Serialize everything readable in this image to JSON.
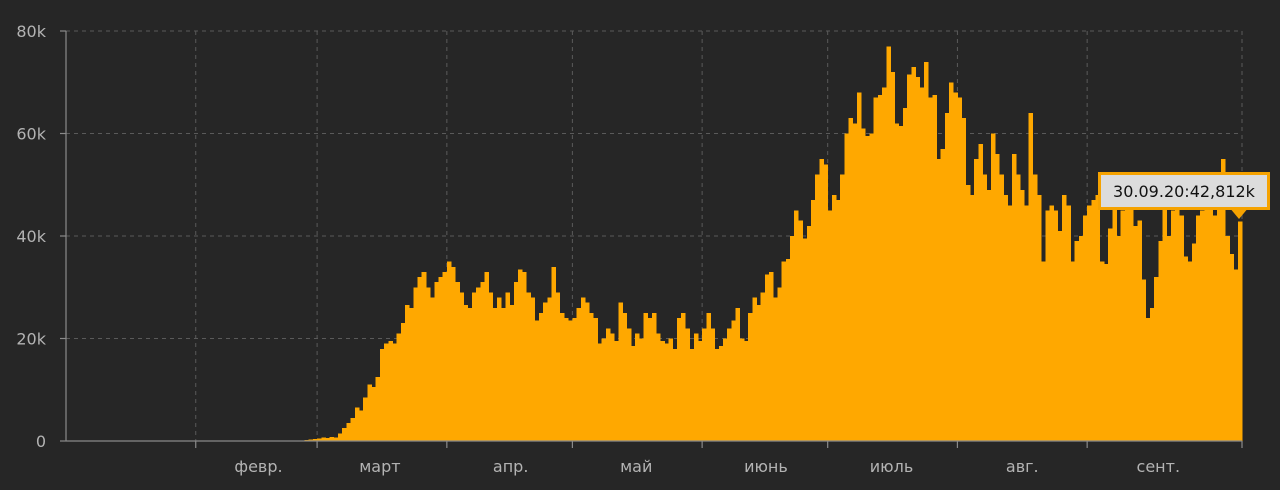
{
  "chart_data": {
    "type": "bar",
    "title": "",
    "xlabel": "",
    "ylabel": "",
    "ylim": [
      0,
      80000
    ],
    "y_ticks": [
      {
        "value": 0,
        "label": "0"
      },
      {
        "value": 20000,
        "label": "20k"
      },
      {
        "value": 40000,
        "label": "40k"
      },
      {
        "value": 60000,
        "label": "60k"
      },
      {
        "value": 80000,
        "label": "80k"
      }
    ],
    "month_labels": [
      {
        "day_index": 31,
        "label": "февр."
      },
      {
        "day_index": 60,
        "label": "март"
      },
      {
        "day_index": 91,
        "label": "апр."
      },
      {
        "day_index": 121,
        "label": "май"
      },
      {
        "day_index": 152,
        "label": "июнь"
      },
      {
        "day_index": 182,
        "label": "июль"
      },
      {
        "day_index": 213,
        "label": "авг."
      },
      {
        "day_index": 244,
        "label": "сент."
      }
    ],
    "x_range": [
      "2020-01-22",
      "2020-09-30"
    ],
    "values": [
      0,
      0,
      0,
      0,
      0,
      0,
      0,
      0,
      0,
      0,
      0,
      0,
      0,
      0,
      0,
      0,
      0,
      0,
      0,
      0,
      0,
      0,
      0,
      0,
      0,
      0,
      0,
      0,
      0,
      0,
      0,
      0,
      0,
      0,
      0,
      0,
      0,
      0,
      0,
      0,
      0,
      0,
      0,
      0,
      0,
      0,
      0,
      0,
      0,
      0,
      0,
      0,
      0,
      0,
      0,
      0,
      100,
      200,
      300,
      400,
      500,
      700,
      600,
      800,
      700,
      1500,
      2500,
      3500,
      4500,
      6500,
      6000,
      8500,
      11000,
      10500,
      12500,
      18000,
      19000,
      19500,
      19000,
      21000,
      23000,
      26500,
      26000,
      30000,
      32000,
      33000,
      30000,
      28000,
      31000,
      32000,
      33000,
      35000,
      34000,
      31000,
      29000,
      26500,
      26000,
      29000,
      30000,
      31000,
      33000,
      29000,
      26000,
      28000,
      26000,
      29000,
      26500,
      31000,
      33500,
      33000,
      29000,
      28000,
      23500,
      25000,
      27000,
      28000,
      34000,
      29000,
      25000,
      24000,
      23500,
      24000,
      26000,
      28000,
      27000,
      25000,
      24000,
      19000,
      20000,
      22000,
      21000,
      19500,
      27000,
      25000,
      22000,
      18500,
      21000,
      20000,
      25000,
      24000,
      25000,
      21000,
      19500,
      19000,
      20000,
      18000,
      24000,
      25000,
      22000,
      18000,
      21000,
      19500,
      22000,
      25000,
      22000,
      18000,
      18500,
      20000,
      22000,
      23500,
      26000,
      20000,
      19500,
      25000,
      28000,
      26500,
      29000,
      32500,
      33000,
      28000,
      30000,
      35000,
      35500,
      40000,
      45000,
      43000,
      39500,
      42000,
      47000,
      52000,
      55000,
      54000,
      45000,
      48000,
      47000,
      52000,
      60000,
      63000,
      62000,
      68000,
      61000,
      59500,
      60000,
      67000,
      67500,
      69000,
      77000,
      72000,
      62000,
      61500,
      65000,
      71500,
      73000,
      71000,
      69000,
      74000,
      67000,
      67500,
      55000,
      57000,
      64000,
      70000,
      68000,
      67000,
      63000,
      50000,
      48000,
      55000,
      58000,
      52000,
      49000,
      60000,
      56000,
      52000,
      48000,
      46000,
      56000,
      52000,
      49000,
      46000,
      64000,
      52000,
      48000,
      35000,
      45000,
      46000,
      45000,
      41000,
      48000,
      46000,
      35000,
      39000,
      40000,
      44000,
      46000,
      47000,
      48000,
      35000,
      34500,
      41500,
      47000,
      40000,
      45000,
      52000,
      50000,
      42000,
      43000,
      31500,
      24000,
      26000,
      32000,
      39000,
      47000,
      40000,
      45000,
      48000,
      44000,
      36000,
      35000,
      38500,
      44000,
      45000,
      48000,
      50000,
      44000,
      50000,
      55000,
      40000,
      36500,
      33500,
      42812
    ],
    "bar_color": "#ffa800",
    "background_color": "#262626",
    "grid": true,
    "tooltip": {
      "text": "30.09.20:42,812k",
      "day_index": 252
    }
  }
}
